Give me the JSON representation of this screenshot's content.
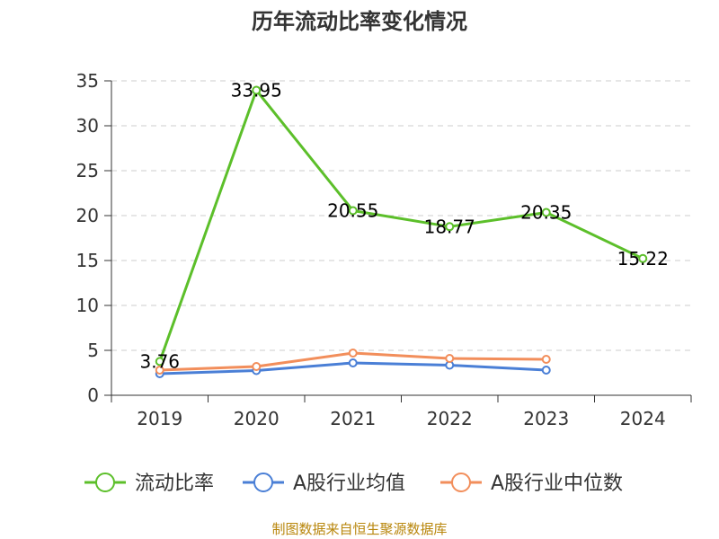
{
  "chart_data": {
    "type": "line",
    "title": "历年流动比率变化情况",
    "xlabel": "",
    "ylabel": "",
    "categories": [
      "2019",
      "2020",
      "2021",
      "2022",
      "2023",
      "2024"
    ],
    "ylim": [
      0,
      35
    ],
    "yticks": [
      0,
      5,
      10,
      15,
      20,
      25,
      30,
      35
    ],
    "grid": true,
    "legend_position": "bottom",
    "series": [
      {
        "name": "流动比率",
        "color": "#5cbf2a",
        "values": [
          3.76,
          33.95,
          20.55,
          18.77,
          20.35,
          15.22
        ],
        "labels": [
          "3.76",
          "33.95",
          "20.55",
          "18.77",
          "20.35",
          "15.22"
        ],
        "show_labels": true
      },
      {
        "name": "A股行业均值",
        "color": "#4a7fd6",
        "values": [
          2.4,
          2.75,
          3.6,
          3.35,
          2.8,
          null
        ],
        "show_labels": false
      },
      {
        "name": "A股行业中位数",
        "color": "#f28e5b",
        "values": [
          2.8,
          3.2,
          4.7,
          4.1,
          4.0,
          null
        ],
        "show_labels": false
      }
    ],
    "source": "制图数据来自恒生聚源数据库"
  }
}
